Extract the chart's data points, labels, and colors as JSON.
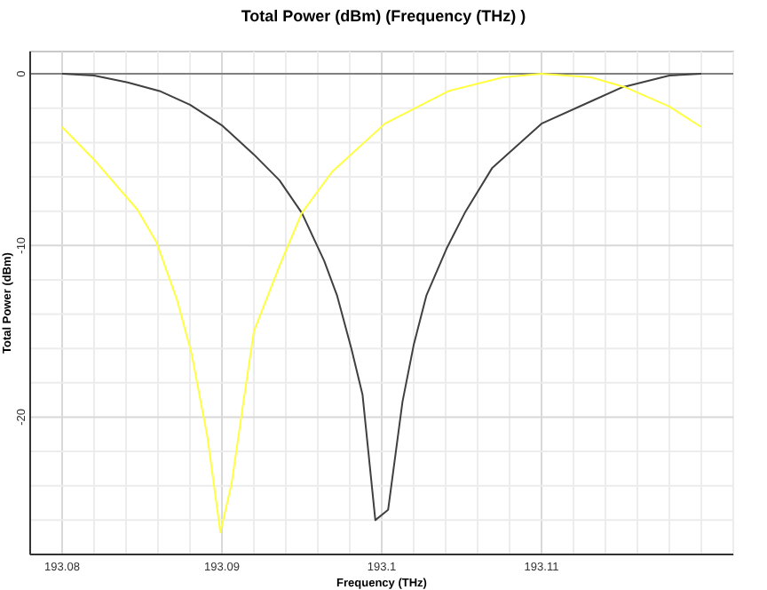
{
  "chart_data": {
    "type": "line",
    "title": "Total Power (dBm) (Frequency (THz) )",
    "xlabel": "Frequency (THz)",
    "ylabel": "Total Power (dBm)",
    "xlim": [
      193.078,
      193.122
    ],
    "ylim": [
      -28,
      1.3
    ],
    "xticks": [
      {
        "value": 193.078,
        "label": null
      },
      193.08,
      {
        "value": 193.082,
        "label": null
      },
      {
        "value": 193.084,
        "label": null
      },
      {
        "value": 193.086,
        "label": null
      },
      {
        "value": 193.088,
        "label": null
      },
      193.09,
      {
        "value": 193.092,
        "label": null
      },
      {
        "value": 193.094,
        "label": null
      },
      {
        "value": 193.096,
        "label": null
      },
      {
        "value": 193.098,
        "label": null
      },
      193.1,
      {
        "value": 193.102,
        "label": null
      },
      {
        "value": 193.104,
        "label": null
      },
      {
        "value": 193.106,
        "label": null
      },
      {
        "value": 193.108,
        "label": null
      },
      193.11,
      {
        "value": 193.112,
        "label": null
      },
      {
        "value": 193.114,
        "label": null
      },
      {
        "value": 193.116,
        "label": null
      },
      {
        "value": 193.118,
        "label": null
      },
      {
        "value": 193.12,
        "label": null
      },
      {
        "value": 193.122,
        "label": null
      }
    ],
    "yticks": [
      {
        "value": -26,
        "label": null
      },
      {
        "value": -24,
        "label": null
      },
      {
        "value": -22,
        "label": null
      },
      -20,
      {
        "value": -18,
        "label": null
      },
      {
        "value": -16,
        "label": null
      },
      {
        "value": -14,
        "label": null
      },
      {
        "value": -12,
        "label": null
      },
      -10,
      {
        "value": -8,
        "label": null
      },
      {
        "value": -6,
        "label": null
      },
      {
        "value": -4,
        "label": null
      },
      {
        "value": -2,
        "label": null
      },
      0
    ],
    "grid": true,
    "marker": "none",
    "line_style": "solid",
    "series": [
      {
        "color": "#404040",
        "x": [
          193.08,
          193.082,
          193.0841,
          193.0861,
          193.088,
          193.09,
          193.092,
          193.0936,
          193.095,
          193.0964,
          193.0972,
          193.0981,
          193.0988,
          193.0996,
          193.1004,
          193.1013,
          193.102,
          193.1028,
          193.1041,
          193.1052,
          193.1069,
          193.11,
          193.1131,
          193.115,
          193.118,
          193.12
        ],
        "values": [
          0,
          -0.1,
          -0.5,
          -1.0,
          -1.8,
          -3.0,
          -4.7,
          -6.2,
          -8.1,
          -10.9,
          -12.9,
          -16,
          -18.7,
          -26,
          -25.4,
          -19.1,
          -15.8,
          -12.9,
          -10.1,
          -8.1,
          -5.5,
          -2.9,
          -1.6,
          -0.8,
          -0.1,
          0
        ]
      },
      {
        "color": "#ffff40",
        "x": [
          193.08,
          193.082,
          193.0847,
          193.0859,
          193.0872,
          193.0881,
          193.0891,
          193.0899,
          193.0906,
          193.0913,
          193.092,
          193.0936,
          193.095,
          193.0969,
          193.1002,
          193.1042,
          193.1076,
          193.11,
          193.1131,
          193.1153,
          193.118,
          193.12
        ],
        "values": [
          -3.1,
          -5.0,
          -7.9,
          -9.8,
          -13.2,
          -16.3,
          -21.2,
          -26.7,
          -23.9,
          -19.4,
          -15.0,
          -11.2,
          -8.1,
          -5.7,
          -2.9,
          -1.0,
          -0.2,
          0,
          -0.2,
          -0.8,
          -1.9,
          -3.1
        ]
      }
    ]
  }
}
